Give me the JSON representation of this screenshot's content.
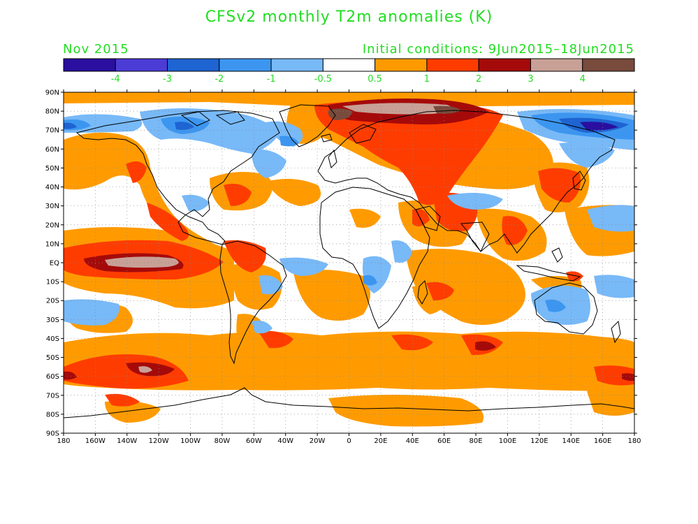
{
  "header": {
    "title": "CFSv2 monthly T2m anomalies (K)",
    "month": "Nov 2015",
    "initial_conditions": "Initial conditions: 9Jun2015–18Jun2015",
    "text_color": "#22dd22"
  },
  "colorbar": {
    "colors": [
      "#2a0fa0",
      "#4c3cd6",
      "#1e64d2",
      "#3c96f0",
      "#78b9f8",
      "#ffffff",
      "#ff9b00",
      "#ff3c00",
      "#a50a0a",
      "#c8a096",
      "#784b3c"
    ],
    "labels": [
      "-4",
      "-3",
      "-2",
      "-1",
      "-0.5",
      "0.5",
      "1",
      "2",
      "3",
      "4"
    ]
  },
  "map": {
    "lat_labels": [
      "90N",
      "80N",
      "70N",
      "60N",
      "50N",
      "40N",
      "30N",
      "20N",
      "10N",
      "EQ",
      "10S",
      "20S",
      "30S",
      "40S",
      "50S",
      "60S",
      "70S",
      "80S",
      "90S"
    ],
    "lon_labels": [
      "180",
      "160W",
      "140W",
      "120W",
      "100W",
      "80W",
      "60W",
      "40W",
      "20W",
      "0",
      "20E",
      "40E",
      "60E",
      "80E",
      "100E",
      "120E",
      "140E",
      "160E",
      "180"
    ]
  }
}
